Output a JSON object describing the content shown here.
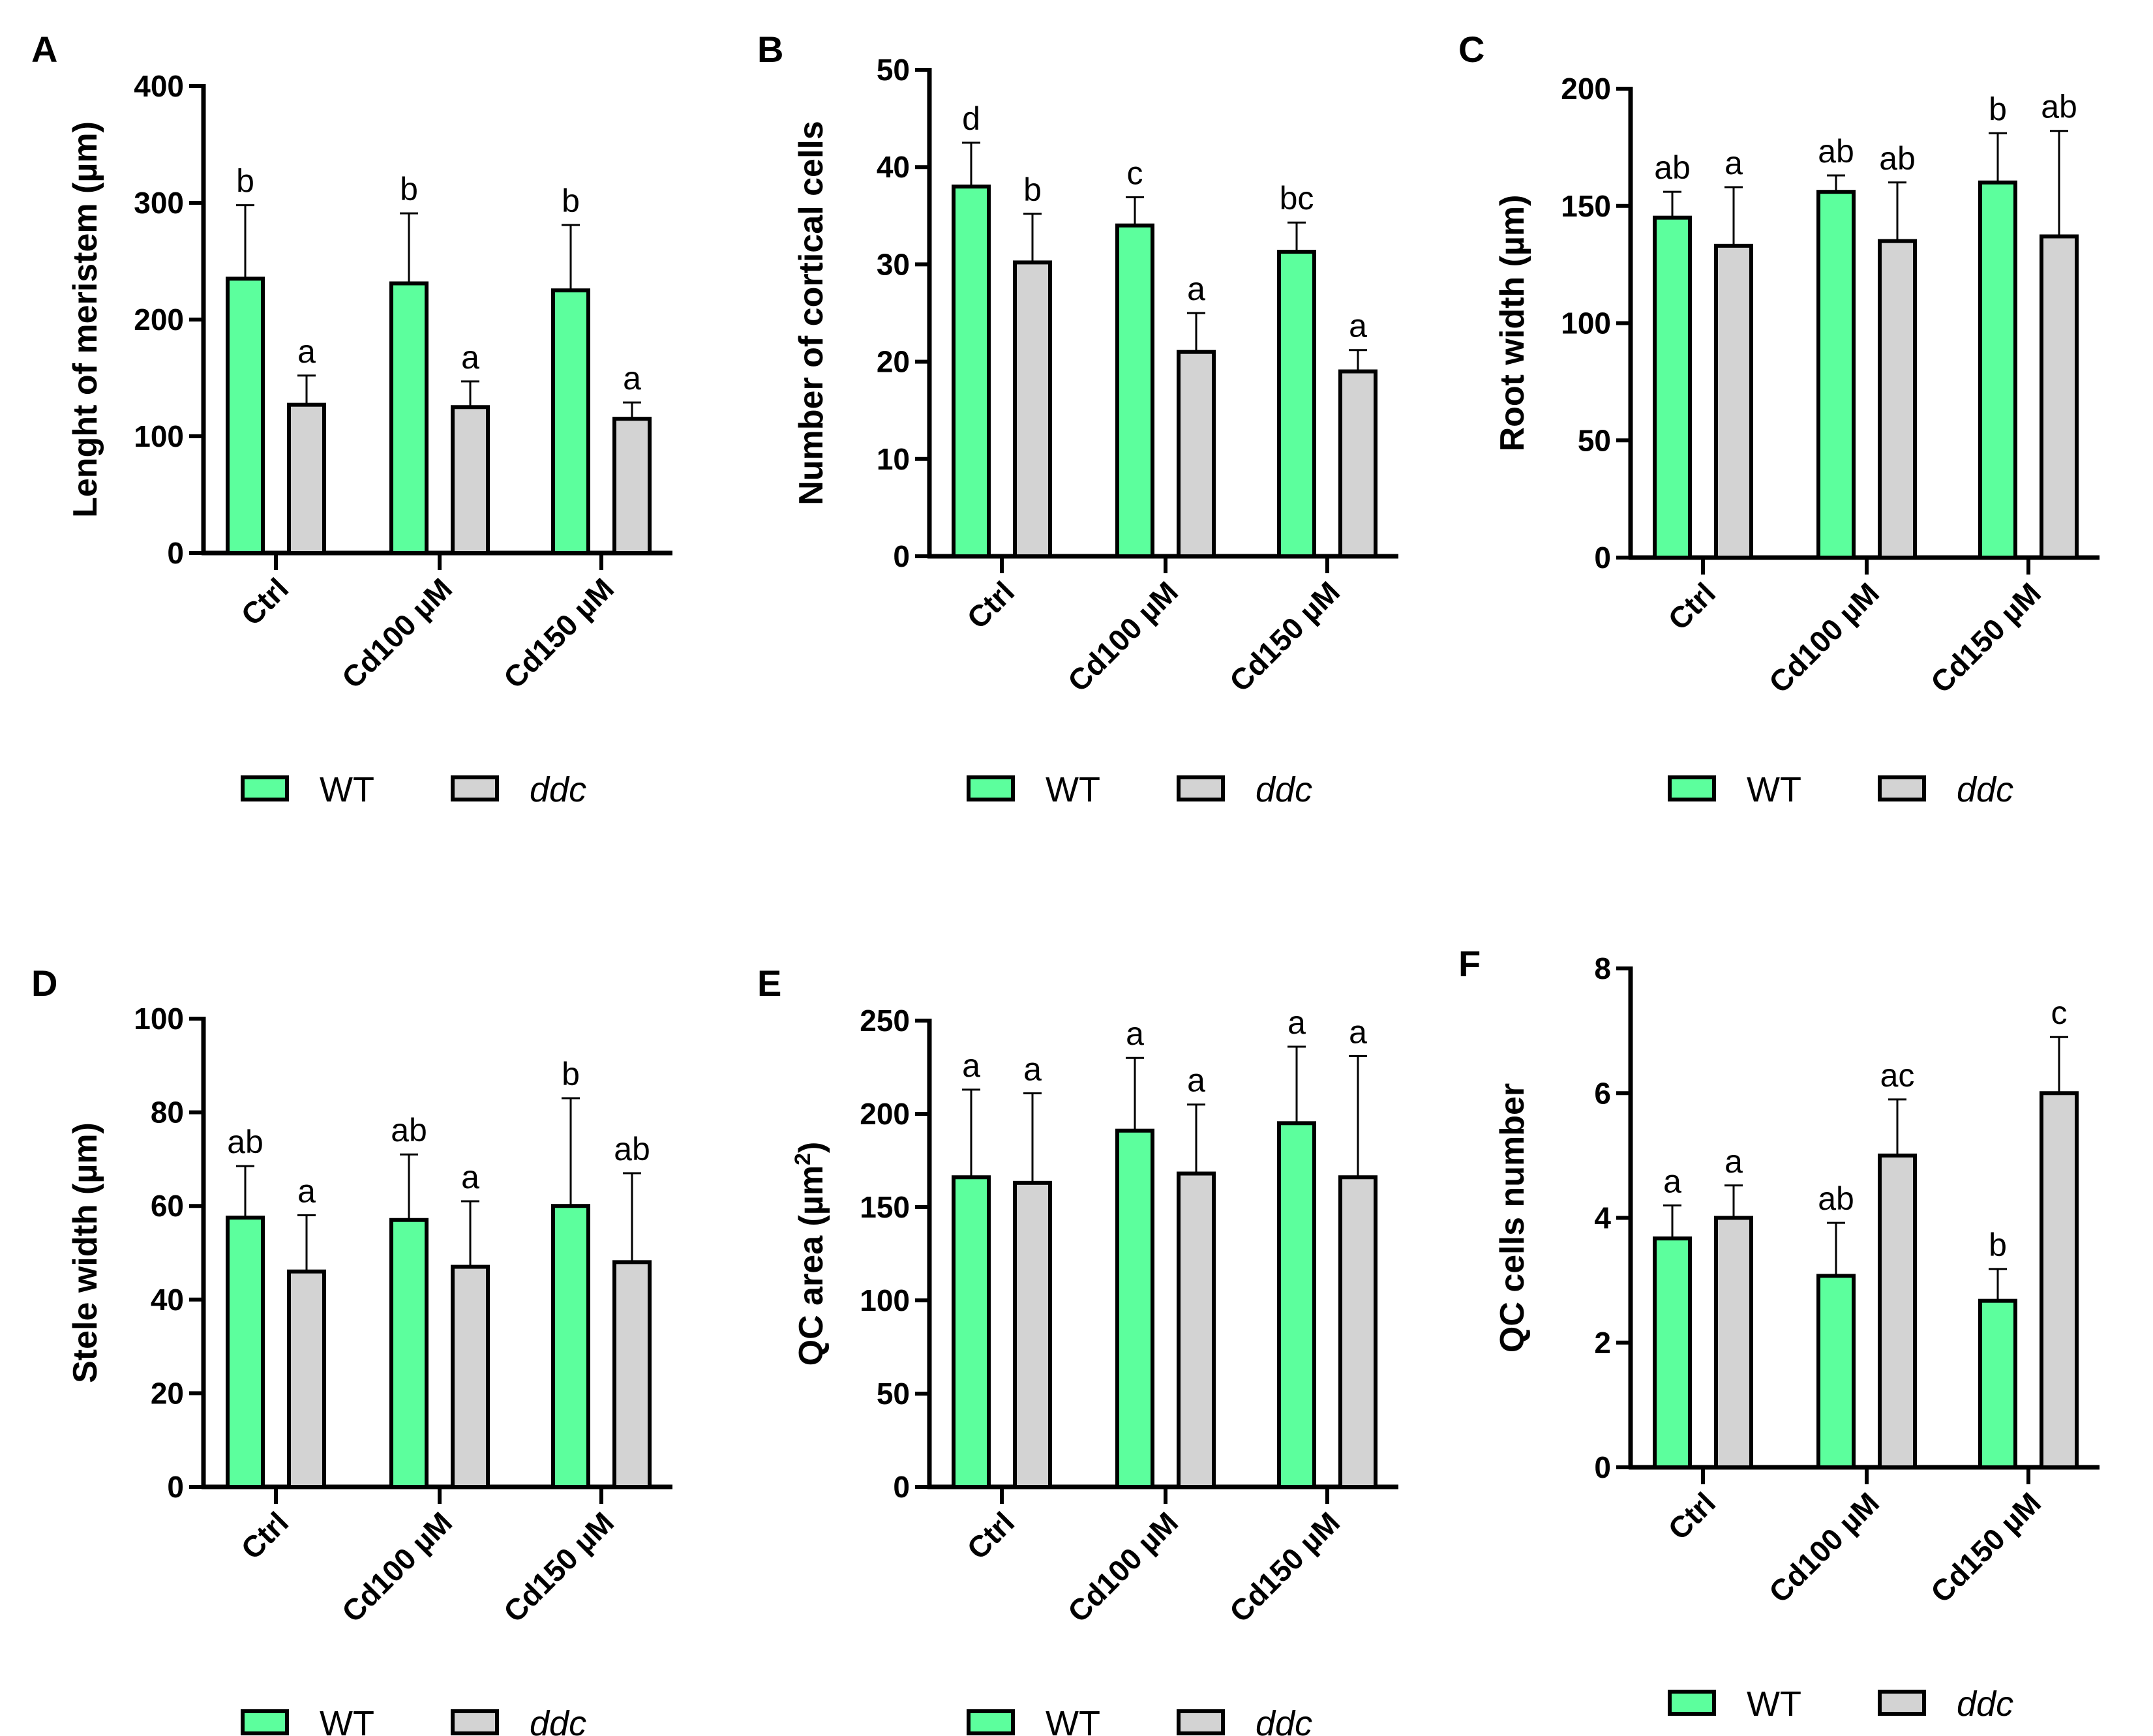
{
  "legend": {
    "wt": "WT",
    "ddc": "ddc"
  },
  "colors": {
    "wt": "#5cff9d",
    "ddc": "#d3d3d3",
    "stroke": "#000000"
  },
  "chart_data": [
    {
      "panel": "A",
      "type": "bar",
      "categories": [
        "Ctrl",
        "Cd100 µM",
        "Cd150 µM"
      ],
      "ylabel": "Lenght of meristem (µm)",
      "ylabel_sup": "",
      "ylabel_tail": "",
      "ylim": [
        0,
        400
      ],
      "yticks": [
        0,
        100,
        200,
        300,
        400
      ],
      "series": [
        {
          "name": "WT",
          "values": [
            235,
            231,
            225
          ],
          "err_top": [
            298,
            291,
            281
          ],
          "letters": [
            "b",
            "b",
            "b"
          ]
        },
        {
          "name": "ddc",
          "values": [
            127,
            125,
            115
          ],
          "err_top": [
            152,
            147,
            129
          ],
          "letters": [
            "a",
            "a",
            "a"
          ]
        }
      ]
    },
    {
      "panel": "B",
      "type": "bar",
      "categories": [
        "Ctrl",
        "Cd100 µM",
        "Cd150 µM"
      ],
      "ylabel": "Number of cortical cells",
      "ylabel_sup": "",
      "ylabel_tail": "",
      "ylim": [
        0,
        50
      ],
      "yticks": [
        0,
        10,
        20,
        30,
        40,
        50
      ],
      "series": [
        {
          "name": "WT",
          "values": [
            38,
            34,
            31.3
          ],
          "err_top": [
            42.5,
            36.9,
            34.3
          ],
          "letters": [
            "d",
            "c",
            "bc"
          ]
        },
        {
          "name": "ddc",
          "values": [
            30.2,
            21,
            19
          ],
          "err_top": [
            35.2,
            25,
            21.2
          ],
          "letters": [
            "b",
            "a",
            "a"
          ]
        }
      ]
    },
    {
      "panel": "C",
      "type": "bar",
      "categories": [
        "Ctrl",
        "Cd100 µM",
        "Cd150 µM"
      ],
      "ylabel": "Root width (µm)",
      "ylabel_sup": "",
      "ylabel_tail": "",
      "ylim": [
        0,
        200
      ],
      "yticks": [
        0,
        50,
        100,
        150,
        200
      ],
      "series": [
        {
          "name": "WT",
          "values": [
            145,
            156,
            160
          ],
          "err_top": [
            156,
            163,
            181
          ],
          "letters": [
            "ab",
            "ab",
            "b"
          ]
        },
        {
          "name": "ddc",
          "values": [
            133,
            135,
            137
          ],
          "err_top": [
            158,
            160,
            182
          ],
          "letters": [
            "a",
            "ab",
            "ab"
          ]
        }
      ]
    },
    {
      "panel": "D",
      "type": "bar",
      "categories": [
        "Ctrl",
        "Cd100 µM",
        "Cd150 µM"
      ],
      "ylabel": "Stele width (µm)",
      "ylabel_sup": "",
      "ylabel_tail": "",
      "ylim": [
        0,
        100
      ],
      "yticks": [
        0,
        20,
        40,
        60,
        80,
        100
      ],
      "series": [
        {
          "name": "WT",
          "values": [
            57.5,
            57,
            60
          ],
          "err_top": [
            68.5,
            71,
            83
          ],
          "letters": [
            "ab",
            "ab",
            "b"
          ]
        },
        {
          "name": "ddc",
          "values": [
            46,
            47,
            48
          ],
          "err_top": [
            58,
            61,
            67
          ],
          "letters": [
            "a",
            "a",
            "ab"
          ]
        }
      ]
    },
    {
      "panel": "E",
      "type": "bar",
      "categories": [
        "Ctrl",
        "Cd100 µM",
        "Cd150 µM"
      ],
      "ylabel": "QC area (µm",
      "ylabel_sup": "2",
      "ylabel_tail": ")",
      "ylim": [
        0,
        250
      ],
      "yticks": [
        0,
        50,
        100,
        150,
        200,
        250
      ],
      "series": [
        {
          "name": "WT",
          "values": [
            166,
            191,
            195
          ],
          "err_top": [
            213,
            230,
            236
          ],
          "letters": [
            "a",
            "a",
            "a"
          ]
        },
        {
          "name": "ddc",
          "values": [
            163,
            168,
            166
          ],
          "err_top": [
            211,
            205,
            231
          ],
          "letters": [
            "a",
            "a",
            "a"
          ]
        }
      ]
    },
    {
      "panel": "F",
      "type": "bar",
      "categories": [
        "Ctrl",
        "Cd100 µM",
        "Cd150 µM"
      ],
      "ylabel": "QC cells number",
      "ylabel_sup": "",
      "ylabel_tail": "",
      "ylim": [
        0,
        8
      ],
      "yticks": [
        0,
        2,
        4,
        6,
        8
      ],
      "series": [
        {
          "name": "WT",
          "values": [
            3.67,
            3.07,
            2.67
          ],
          "err_top": [
            4.2,
            3.92,
            3.18
          ],
          "letters": [
            "a",
            "ab",
            "b"
          ]
        },
        {
          "name": "ddc",
          "values": [
            4,
            5,
            6
          ],
          "err_top": [
            4.52,
            5.9,
            6.9
          ],
          "letters": [
            "a",
            "ac",
            "c"
          ]
        }
      ]
    }
  ]
}
